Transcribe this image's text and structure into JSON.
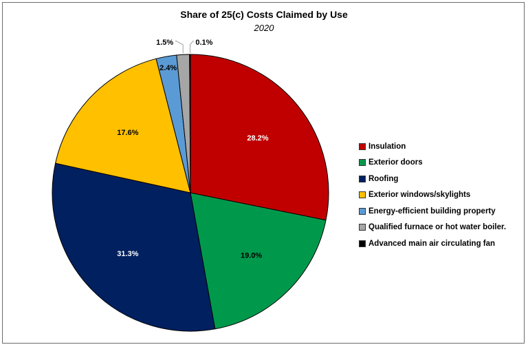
{
  "chart_data": {
    "type": "pie",
    "title": "Share of 25(c) Costs Claimed by Use",
    "subtitle": "2020",
    "slices": [
      {
        "label": "Insulation",
        "value": 28.2,
        "display": "28.2%",
        "color": "#c00000",
        "label_color": "#ffffff"
      },
      {
        "label": "Exterior doors",
        "value": 19.0,
        "display": "19.0%",
        "color": "#00994c",
        "label_color": "#000000"
      },
      {
        "label": "Roofing",
        "value": 31.3,
        "display": "31.3%",
        "color": "#002060",
        "label_color": "#ffffff"
      },
      {
        "label": "Exterior windows/skylights",
        "value": 17.6,
        "display": "17.6%",
        "color": "#ffc000",
        "label_color": "#000000"
      },
      {
        "label": "Energy-efficient building property",
        "value": 2.4,
        "display": "2.4%",
        "color": "#5b9bd5",
        "label_color": "#000000"
      },
      {
        "label": "Qualified furnace or hot water boiler.",
        "value": 1.5,
        "display": "1.5%",
        "color": "#a6a6a6",
        "label_color": "#000000"
      },
      {
        "label": "Advanced main air circulating fan",
        "value": 0.1,
        "display": "0.1%",
        "color": "#000000",
        "label_color": "#000000"
      }
    ],
    "legend_position": "right"
  }
}
